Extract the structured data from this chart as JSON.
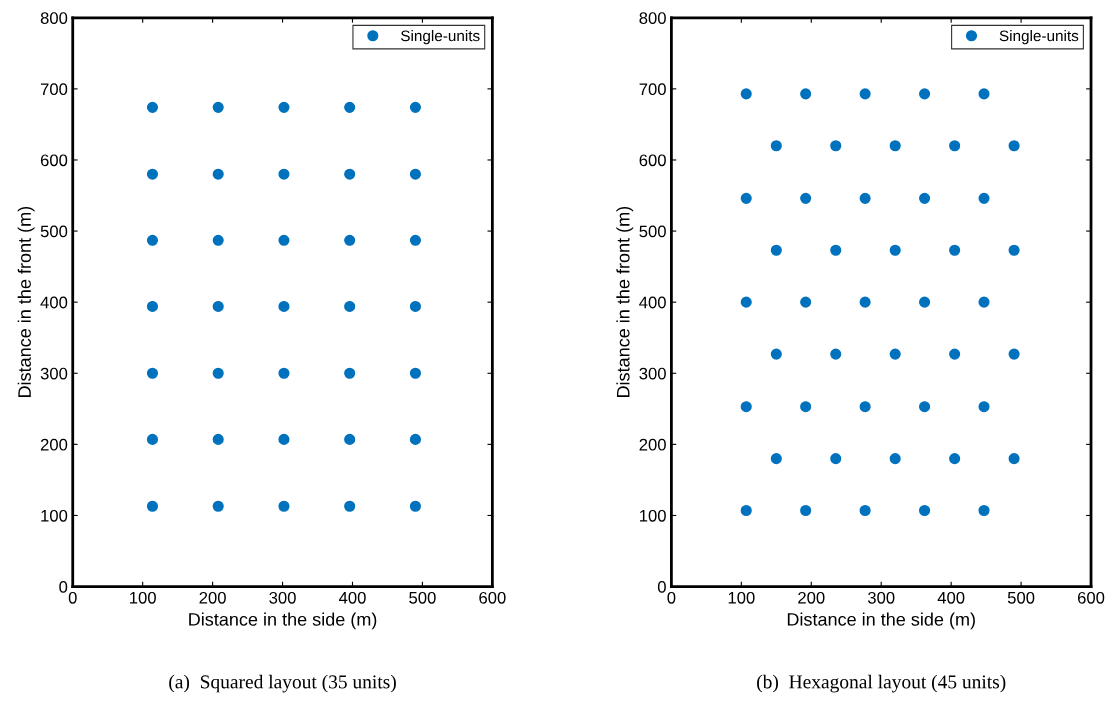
{
  "chart_data": [
    {
      "type": "scatter",
      "xlabel": "Distance in the side (m)",
      "ylabel": "Distance in the front (m)",
      "annotations": [
        "(a)  Squared layout (35 units)"
      ],
      "series": [
        {
          "name": "Single-units",
          "color": "#0072bd",
          "x": [
            114,
            208,
            302,
            396,
            490,
            114,
            208,
            302,
            396,
            490,
            114,
            208,
            302,
            396,
            490,
            114,
            208,
            302,
            396,
            490,
            114,
            208,
            302,
            396,
            490,
            114,
            208,
            302,
            396,
            490,
            114,
            208,
            302,
            396,
            490
          ],
          "values": [
            674,
            674,
            674,
            674,
            674,
            580,
            580,
            580,
            580,
            580,
            487,
            487,
            487,
            487,
            487,
            394,
            394,
            394,
            394,
            394,
            300,
            300,
            300,
            300,
            300,
            207,
            207,
            207,
            207,
            207,
            113,
            113,
            113,
            113,
            113
          ]
        }
      ],
      "xlim": [
        0,
        600
      ],
      "ylim": [
        0,
        800
      ],
      "xticks": [
        0,
        100,
        200,
        300,
        400,
        500,
        600
      ],
      "yticks": [
        0,
        100,
        200,
        300,
        400,
        500,
        600,
        700,
        800
      ],
      "grid": false,
      "legend": "top right",
      "marker": "circle"
    },
    {
      "type": "scatter",
      "xlabel": "Distance in the side (m)",
      "ylabel": "Distance in the front (m)",
      "annotations": [
        "(b)  Hexagonal layout (45 units)"
      ],
      "series": [
        {
          "name": "Single-units",
          "color": "#0072bd",
          "x": [
            107,
            192,
            277,
            362,
            447,
            150,
            235,
            320,
            405,
            490,
            107,
            192,
            277,
            362,
            447,
            150,
            235,
            320,
            405,
            490,
            107,
            192,
            277,
            362,
            447,
            150,
            235,
            320,
            405,
            490,
            107,
            192,
            277,
            362,
            447,
            150,
            235,
            320,
            405,
            490,
            107,
            192,
            277,
            362,
            447
          ],
          "values": [
            693,
            693,
            693,
            693,
            693,
            620,
            620,
            620,
            620,
            620,
            546,
            546,
            546,
            546,
            546,
            473,
            473,
            473,
            473,
            473,
            400,
            400,
            400,
            400,
            400,
            327,
            327,
            327,
            327,
            327,
            253,
            253,
            253,
            253,
            253,
            180,
            180,
            180,
            180,
            180,
            107,
            107,
            107,
            107,
            107
          ]
        }
      ],
      "xlim": [
        0,
        600
      ],
      "ylim": [
        0,
        800
      ],
      "xticks": [
        0,
        100,
        200,
        300,
        400,
        500,
        600
      ],
      "yticks": [
        0,
        100,
        200,
        300,
        400,
        500,
        600,
        700,
        800
      ],
      "grid": false,
      "legend": "top right",
      "marker": "circle"
    }
  ]
}
